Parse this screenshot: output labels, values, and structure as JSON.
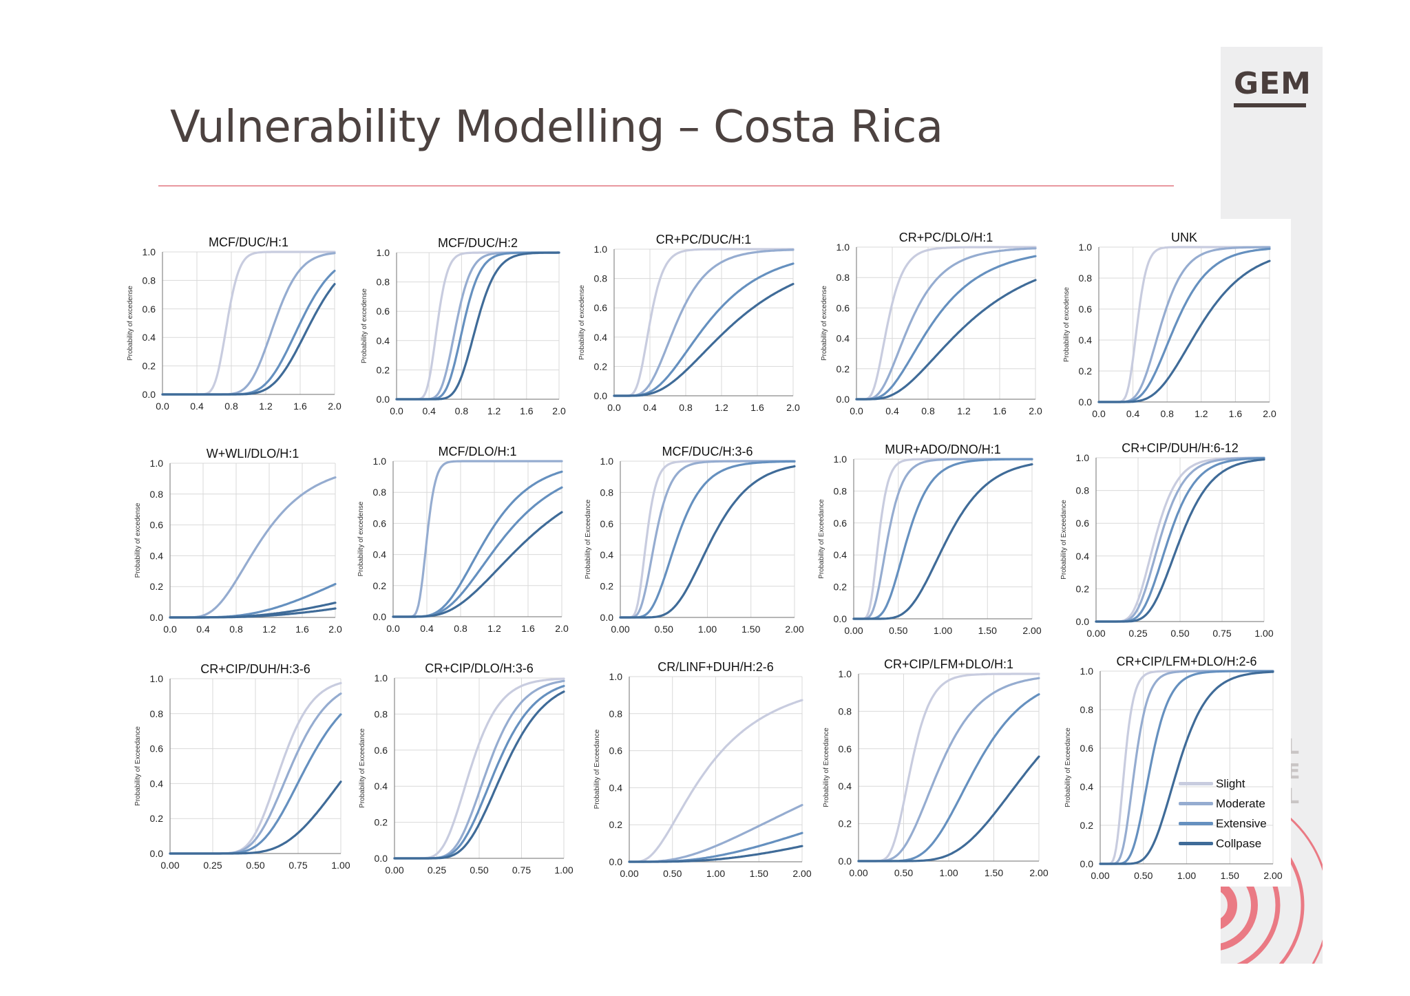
{
  "title": "Vulnerability Modelling – Costa Rica",
  "logo": "GEM",
  "side_letters": [
    "L",
    "E",
    "L"
  ],
  "colors": {
    "slight": "#c8ccdf",
    "moderate": "#95acd0",
    "extensive": "#6590bf",
    "collapse": "#3f6b98",
    "title": "#4c4240",
    "divider": "#e8979e",
    "accent_rings": "#ea7a84"
  },
  "legend": {
    "items": [
      {
        "label": "Slight",
        "color": "#c8ccdf"
      },
      {
        "label": "Moderate",
        "color": "#95acd0"
      },
      {
        "label": "Extensive",
        "color": "#6590bf"
      },
      {
        "label": "Collpase",
        "color": "#3f6b98"
      }
    ]
  },
  "chart_data": [
    {
      "type": "line",
      "title": "MCF/DUC/H:1",
      "ylabel": "Probability of excedense",
      "xlim": [
        0,
        2
      ],
      "ylim": [
        0,
        1
      ],
      "xticks": [
        "0.0",
        "0.4",
        "0.8",
        "1.2",
        "1.6",
        "2.0"
      ],
      "yticks": [
        "0.0",
        "0.2",
        "0.4",
        "0.6",
        "0.8",
        "1.0"
      ],
      "series": [
        {
          "key": "slight",
          "median": 0.75,
          "beta": 0.15
        },
        {
          "key": "moderate",
          "median": 1.3,
          "beta": 0.18
        },
        {
          "key": "extensive",
          "median": 1.6,
          "beta": 0.2
        },
        {
          "key": "collapse",
          "median": 1.72,
          "beta": 0.2
        }
      ]
    },
    {
      "type": "line",
      "title": "MCF/DUC/H:2",
      "ylabel": "Probability of excedense",
      "xlim": [
        0,
        2
      ],
      "ylim": [
        0,
        1
      ],
      "xticks": [
        "0.0",
        "0.4",
        "0.8",
        "1.2",
        "1.6",
        "2.0"
      ],
      "yticks": [
        "0.0",
        "0.2",
        "0.4",
        "0.6",
        "0.8",
        "1.0"
      ],
      "series": [
        {
          "key": "slight",
          "median": 0.5,
          "beta": 0.2
        },
        {
          "key": "moderate",
          "median": 0.73,
          "beta": 0.2
        },
        {
          "key": "extensive",
          "median": 0.82,
          "beta": 0.2
        },
        {
          "key": "collapse",
          "median": 0.98,
          "beta": 0.2
        }
      ]
    },
    {
      "type": "line",
      "title": "CR+PC/DUC/H:1",
      "ylabel": "Probability of excedense",
      "xlim": [
        0,
        2
      ],
      "ylim": [
        0,
        1
      ],
      "xticks": [
        "0.0",
        "0.4",
        "0.8",
        "1.2",
        "1.6",
        "2.0"
      ],
      "yticks": [
        "0.0",
        "0.2",
        "0.4",
        "0.6",
        "0.8",
        "1.0"
      ],
      "series": [
        {
          "key": "slight",
          "median": 0.4,
          "beta": 0.3
        },
        {
          "key": "moderate",
          "median": 0.7,
          "beta": 0.4
        },
        {
          "key": "extensive",
          "median": 1.05,
          "beta": 0.5
        },
        {
          "key": "collapse",
          "median": 1.35,
          "beta": 0.55
        }
      ]
    },
    {
      "type": "line",
      "title": "CR+PC/DLO/H:1",
      "ylabel": "Probability of excedense",
      "xlim": [
        0,
        2
      ],
      "ylim": [
        0,
        1
      ],
      "xticks": [
        "0.0",
        "0.4",
        "0.8",
        "1.2",
        "1.6",
        "2.0"
      ],
      "yticks": [
        "0.0",
        "0.2",
        "0.4",
        "0.6",
        "0.8",
        "1.0"
      ],
      "series": [
        {
          "key": "slight",
          "median": 0.35,
          "beta": 0.4
        },
        {
          "key": "moderate",
          "median": 0.6,
          "beta": 0.5
        },
        {
          "key": "extensive",
          "median": 0.85,
          "beta": 0.55
        },
        {
          "key": "collapse",
          "median": 1.25,
          "beta": 0.6
        }
      ]
    },
    {
      "type": "line",
      "title": "UNK",
      "ylabel": "Probability of excedense",
      "xlim": [
        0,
        2
      ],
      "ylim": [
        0,
        1
      ],
      "xticks": [
        "0.0",
        "0.4",
        "0.8",
        "1.2",
        "1.6",
        "2.0"
      ],
      "yticks": [
        "0.0",
        "0.2",
        "0.4",
        "0.6",
        "0.8",
        "1.0"
      ],
      "series": [
        {
          "key": "slight",
          "median": 0.45,
          "beta": 0.2
        },
        {
          "key": "moderate",
          "median": 0.73,
          "beta": 0.3
        },
        {
          "key": "extensive",
          "median": 0.9,
          "beta": 0.35
        },
        {
          "key": "collapse",
          "median": 1.2,
          "beta": 0.38
        }
      ]
    },
    {
      "type": "line",
      "title": "W+WLI/DLO/H:1",
      "ylabel": "Probability of excedense",
      "xlim": [
        0,
        2
      ],
      "ylim": [
        0,
        1
      ],
      "xticks": [
        "0.0",
        "0.4",
        "0.8",
        "1.2",
        "1.6",
        "2.0"
      ],
      "yticks": [
        "0.0",
        "0.2",
        "0.4",
        "0.6",
        "0.8",
        "1.0"
      ],
      "series": [
        {
          "key": "moderate",
          "median": 1.1,
          "beta": 0.45
        },
        {
          "key": "extensive",
          "median": 3.2,
          "beta": 0.6
        },
        {
          "key": "collapse",
          "median": 5.0,
          "beta": 0.7
        },
        {
          "key": "collapse",
          "median": 6.5,
          "beta": 0.75
        }
      ]
    },
    {
      "type": "line",
      "title": "MCF/DLO/H:1",
      "ylabel": "Probability of excedense",
      "xlim": [
        0,
        2
      ],
      "ylim": [
        0,
        1
      ],
      "xticks": [
        "0.0",
        "0.4",
        "0.8",
        "1.2",
        "1.6",
        "2.0"
      ],
      "yticks": [
        "0.0",
        "0.2",
        "0.4",
        "0.6",
        "0.8",
        "1.0"
      ],
      "series": [
        {
          "key": "moderate",
          "median": 0.4,
          "beta": 0.2
        },
        {
          "key": "extensive",
          "median": 1.1,
          "beta": 0.4
        },
        {
          "key": "extensive",
          "median": 1.3,
          "beta": 0.45
        },
        {
          "key": "collapse",
          "median": 1.6,
          "beta": 0.5
        }
      ]
    },
    {
      "type": "line",
      "title": "MCF/DUC/H:3-6",
      "ylabel": "Probability of Exceedance",
      "xlim": [
        0,
        2
      ],
      "ylim": [
        0,
        1
      ],
      "xticks": [
        "0.00",
        "0.50",
        "1.00",
        "1.50",
        "2.00"
      ],
      "yticks": [
        "0.0",
        "0.2",
        "0.4",
        "0.6",
        "0.8",
        "1.0"
      ],
      "series": [
        {
          "key": "slight",
          "median": 0.3,
          "beta": 0.3
        },
        {
          "key": "moderate",
          "median": 0.4,
          "beta": 0.35
        },
        {
          "key": "extensive",
          "median": 0.65,
          "beta": 0.38
        },
        {
          "key": "collapse",
          "median": 1.05,
          "beta": 0.35
        }
      ]
    },
    {
      "type": "line",
      "title": "MUR+ADO/DNO/H:1",
      "ylabel": "Probability of Exceedance",
      "xlim": [
        0,
        2
      ],
      "ylim": [
        0,
        1
      ],
      "xticks": [
        "0.00",
        "0.50",
        "1.00",
        "1.50",
        "2.00"
      ],
      "yticks": [
        "0.0",
        "0.2",
        "0.4",
        "0.6",
        "0.8",
        "1.0"
      ],
      "series": [
        {
          "key": "slight",
          "median": 0.28,
          "beta": 0.3
        },
        {
          "key": "moderate",
          "median": 0.38,
          "beta": 0.35
        },
        {
          "key": "extensive",
          "median": 0.6,
          "beta": 0.35
        },
        {
          "key": "collapse",
          "median": 1.05,
          "beta": 0.35
        }
      ]
    },
    {
      "type": "line",
      "title": "CR+CIP/DUH/H:6-12",
      "ylabel": "Probability of Exceedance",
      "xlim": [
        0,
        1
      ],
      "ylim": [
        0,
        1
      ],
      "xticks": [
        "0.00",
        "0.25",
        "0.50",
        "0.75",
        "1.00"
      ],
      "yticks": [
        "0.0",
        "0.2",
        "0.4",
        "0.6",
        "0.8",
        "1.0"
      ],
      "series": [
        {
          "key": "slight",
          "median": 0.35,
          "beta": 0.3
        },
        {
          "key": "moderate",
          "median": 0.38,
          "beta": 0.3
        },
        {
          "key": "extensive",
          "median": 0.43,
          "beta": 0.3
        },
        {
          "key": "collapse",
          "median": 0.5,
          "beta": 0.3
        }
      ]
    },
    {
      "type": "line",
      "title": "CR+CIP/DUH/H:3-6",
      "ylabel": "Probability of Exceedance",
      "xlim": [
        0,
        1
      ],
      "ylim": [
        0,
        1
      ],
      "xticks": [
        "0.00",
        "0.25",
        "0.50",
        "0.75",
        "1.00"
      ],
      "yticks": [
        "0.0",
        "0.2",
        "0.4",
        "0.6",
        "0.8",
        "1.0"
      ],
      "series": [
        {
          "key": "slight",
          "median": 0.65,
          "beta": 0.22
        },
        {
          "key": "moderate",
          "median": 0.71,
          "beta": 0.25
        },
        {
          "key": "extensive",
          "median": 0.8,
          "beta": 0.27
        },
        {
          "key": "collapse",
          "median": 1.07,
          "beta": 0.3
        }
      ]
    },
    {
      "type": "line",
      "title": "CR+CIP/DLO/H:3-6",
      "ylabel": "Probability of Exceedance",
      "xlim": [
        0,
        1
      ],
      "ylim": [
        0,
        1
      ],
      "xticks": [
        "0.00",
        "0.25",
        "0.50",
        "0.75",
        "1.00"
      ],
      "yticks": [
        "0.0",
        "0.2",
        "0.4",
        "0.6",
        "0.8",
        "1.0"
      ],
      "series": [
        {
          "key": "slight",
          "median": 0.45,
          "beta": 0.3
        },
        {
          "key": "moderate",
          "median": 0.55,
          "beta": 0.28
        },
        {
          "key": "extensive",
          "median": 0.6,
          "beta": 0.3
        },
        {
          "key": "collapse",
          "median": 0.65,
          "beta": 0.3
        }
      ]
    },
    {
      "type": "line",
      "title": "CR/LINF+DUH/H:2-6",
      "ylabel": "Probability of Exceedance",
      "xlim": [
        0,
        2
      ],
      "ylim": [
        0,
        1
      ],
      "xticks": [
        "0.00",
        "0.50",
        "1.00",
        "1.50",
        "2.00"
      ],
      "yticks": [
        "0.0",
        "0.2",
        "0.4",
        "0.6",
        "0.8",
        "1.0"
      ],
      "series": [
        {
          "key": "slight",
          "median": 0.9,
          "beta": 0.7
        },
        {
          "key": "moderate",
          "median": 3.0,
          "beta": 0.8
        },
        {
          "key": "extensive",
          "median": 4.5,
          "beta": 0.8
        },
        {
          "key": "collapse",
          "median": 6.0,
          "beta": 0.8
        }
      ]
    },
    {
      "type": "line",
      "title": "CR+CIP/LFM+DLO/H:1",
      "ylabel": "Probability of Exceedance",
      "xlim": [
        0,
        2
      ],
      "ylim": [
        0,
        1
      ],
      "xticks": [
        "0.00",
        "0.50",
        "1.00",
        "1.50",
        "2.00"
      ],
      "yticks": [
        "0.0",
        "0.2",
        "0.4",
        "0.6",
        "0.8",
        "1.0"
      ],
      "series": [
        {
          "key": "slight",
          "median": 0.58,
          "beta": 0.3
        },
        {
          "key": "moderate",
          "median": 0.9,
          "beta": 0.4
        },
        {
          "key": "extensive",
          "median": 1.3,
          "beta": 0.35
        },
        {
          "key": "collapse",
          "median": 1.9,
          "beta": 0.35
        }
      ]
    },
    {
      "type": "line",
      "title": "CR+CIP/LFM+DLO/H:2-6",
      "ylabel": "Probability of Exceedance",
      "xlim": [
        0,
        2
      ],
      "ylim": [
        0,
        1
      ],
      "xticks": [
        "0.00",
        "0.50",
        "1.00",
        "1.50",
        "2.00"
      ],
      "yticks": [
        "0.0",
        "0.2",
        "0.4",
        "0.6",
        "0.8",
        "1.0"
      ],
      "series": [
        {
          "key": "slight",
          "median": 0.28,
          "beta": 0.3
        },
        {
          "key": "moderate",
          "median": 0.4,
          "beta": 0.3
        },
        {
          "key": "extensive",
          "median": 0.58,
          "beta": 0.3
        },
        {
          "key": "collapse",
          "median": 0.9,
          "beta": 0.3
        }
      ]
    }
  ]
}
